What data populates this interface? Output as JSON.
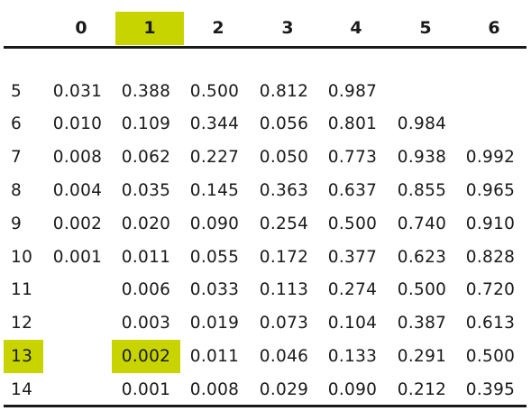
{
  "columns": [
    "0",
    "1",
    "2",
    "3",
    "4",
    "5",
    "6"
  ],
  "highlight_color": "#c8d400",
  "highlighted_column": "1",
  "highlighted_row": "13",
  "rows": [
    {
      "n": "5",
      "values": [
        "0.031",
        "0.388",
        "0.500",
        "0.812",
        "0.987",
        "",
        ""
      ]
    },
    {
      "n": "6",
      "values": [
        "0.010",
        "0.109",
        "0.344",
        "0.056",
        "0.801",
        "0.984",
        ""
      ]
    },
    {
      "n": "7",
      "values": [
        "0.008",
        "0.062",
        "0.227",
        "0.050",
        "0.773",
        "0.938",
        "0.992"
      ]
    },
    {
      "n": "8",
      "values": [
        "0.004",
        "0.035",
        "0.145",
        "0.363",
        "0.637",
        "0.855",
        "0.965"
      ]
    },
    {
      "n": "9",
      "values": [
        "0.002",
        "0.020",
        "0.090",
        "0.254",
        "0.500",
        "0.740",
        "0.910"
      ]
    },
    {
      "n": "10",
      "values": [
        "0.001",
        "0.011",
        "0.055",
        "0.172",
        "0.377",
        "0.623",
        "0.828"
      ]
    },
    {
      "n": "11",
      "values": [
        "",
        "0.006",
        "0.033",
        "0.113",
        "0.274",
        "0.500",
        "0.720"
      ]
    },
    {
      "n": "12",
      "values": [
        "",
        "0.003",
        "0.019",
        "0.073",
        "0.104",
        "0.387",
        "0.613"
      ]
    },
    {
      "n": "13",
      "values": [
        "",
        "0.002",
        "0.011",
        "0.046",
        "0.133",
        "0.291",
        "0.500"
      ]
    },
    {
      "n": "14",
      "values": [
        "",
        "0.001",
        "0.008",
        "0.029",
        "0.090",
        "0.212",
        "0.395"
      ]
    }
  ]
}
